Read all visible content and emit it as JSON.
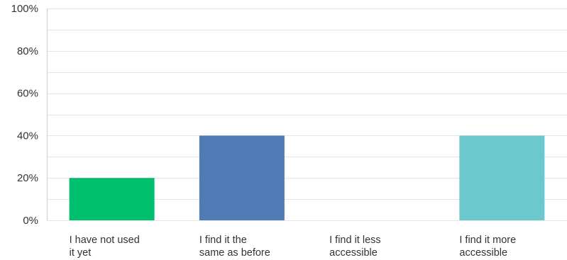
{
  "chart_data": {
    "type": "bar",
    "categories": [
      [
        "I have not used",
        "it yet"
      ],
      [
        "I find it the",
        "same as before"
      ],
      [
        "I find it less",
        "accessible"
      ],
      [
        "I find it more",
        "accessible"
      ]
    ],
    "values": [
      20,
      40,
      0,
      40
    ],
    "colors": [
      "#00bf6f",
      "#507cb6",
      "#f05b24",
      "#6bc8cd"
    ],
    "y_ticks": [
      "0%",
      "20%",
      "40%",
      "60%",
      "80%",
      "100%"
    ],
    "ylim": [
      0,
      100
    ],
    "title": "",
    "xlabel": "",
    "ylabel": "",
    "grid": true,
    "legend": "none"
  }
}
